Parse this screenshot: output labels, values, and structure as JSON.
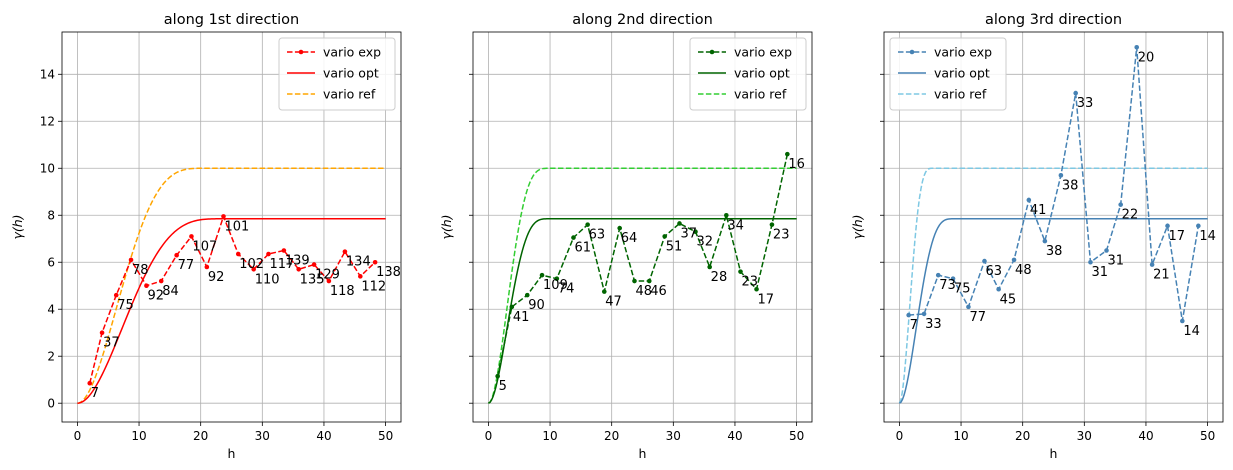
{
  "chart_data": [
    {
      "type": "line",
      "title": "along 1st direction",
      "xlabel": "h",
      "ylabel": "γ(h)",
      "xlim": [
        -2.5,
        52.5
      ],
      "ylim": [
        -0.8,
        15.8
      ],
      "xticks": [
        0,
        10,
        20,
        30,
        40,
        50
      ],
      "yticks": [
        0,
        2,
        4,
        6,
        8,
        10,
        12,
        14
      ],
      "show_yticklabels": true,
      "grid": true,
      "legend_position": "upper-right",
      "opt_model": {
        "sill": 7.85,
        "range": 24
      },
      "ref_model": {
        "sill": 10.0,
        "range": 21
      },
      "series": [
        {
          "name": "vario exp",
          "style": "dashed-markers",
          "color": "#ff0000",
          "x": [
            2.0,
            4.0,
            6.3,
            8.7,
            11.2,
            13.6,
            16.1,
            18.5,
            21.0,
            23.7,
            26.1,
            28.6,
            31.0,
            33.5,
            35.9,
            38.4,
            40.8,
            43.4,
            45.9,
            48.3
          ],
          "y": [
            0.85,
            3.0,
            4.6,
            6.1,
            5.0,
            5.2,
            6.3,
            7.1,
            5.8,
            7.95,
            6.35,
            5.7,
            6.35,
            6.5,
            5.7,
            5.9,
            5.2,
            6.45,
            5.4,
            6.0
          ],
          "labels": [
            "7",
            "37",
            "75",
            "78",
            "92",
            "84",
            "77",
            "107",
            "92",
            "101",
            "102",
            "110",
            "117",
            "139",
            "135",
            "129",
            "118",
            "134",
            "112",
            "138"
          ]
        },
        {
          "name": "vario opt",
          "style": "solid",
          "color": "#ff0000"
        },
        {
          "name": "vario ref",
          "style": "dashed",
          "color": "#ffa500"
        }
      ]
    },
    {
      "type": "line",
      "title": "along 2nd direction",
      "xlabel": "h",
      "ylabel": "γ(h)",
      "xlim": [
        -2.5,
        52.5
      ],
      "ylim": [
        -0.8,
        15.8
      ],
      "xticks": [
        0,
        10,
        20,
        30,
        40,
        50
      ],
      "yticks": [
        0,
        2,
        4,
        6,
        8,
        10,
        12,
        14
      ],
      "show_yticklabels": false,
      "grid": true,
      "legend_position": "upper-right",
      "opt_model": {
        "sill": 7.85,
        "range": 10
      },
      "ref_model": {
        "sill": 10.0,
        "range": 10
      },
      "series": [
        {
          "name": "vario exp",
          "style": "dashed-markers",
          "color": "#006400",
          "x": [
            1.5,
            3.8,
            6.3,
            8.7,
            11.1,
            13.8,
            16.1,
            18.8,
            21.3,
            23.7,
            26.1,
            28.6,
            31.0,
            33.6,
            35.9,
            38.6,
            40.9,
            43.5,
            46.0,
            48.5
          ],
          "y": [
            1.15,
            4.1,
            4.6,
            5.45,
            5.3,
            7.05,
            7.6,
            4.75,
            7.45,
            5.2,
            5.2,
            7.1,
            7.65,
            7.3,
            5.8,
            8.0,
            5.6,
            4.85,
            7.6,
            10.6
          ],
          "labels": [
            "5",
            "41",
            "90",
            "109",
            "74",
            "61",
            "63",
            "47",
            "64",
            "48",
            "46",
            "51",
            "37",
            "32",
            "28",
            "34",
            "23",
            "17",
            "23",
            "16"
          ]
        },
        {
          "name": "vario opt",
          "style": "solid",
          "color": "#006400"
        },
        {
          "name": "vario ref",
          "style": "dashed",
          "color": "#32cd32"
        }
      ]
    },
    {
      "type": "line",
      "title": "along 3rd direction",
      "xlabel": "h",
      "ylabel": "γ(h)",
      "xlim": [
        -2.5,
        52.5
      ],
      "ylim": [
        -0.8,
        15.8
      ],
      "xticks": [
        0,
        10,
        20,
        30,
        40,
        50
      ],
      "yticks": [
        0,
        2,
        4,
        6,
        8,
        10,
        12,
        14
      ],
      "show_yticklabels": false,
      "grid": true,
      "legend_position": "upper-left",
      "opt_model": {
        "sill": 7.85,
        "range": 9
      },
      "ref_model": {
        "sill": 10.0,
        "range": 5.5
      },
      "series": [
        {
          "name": "vario exp",
          "style": "dashed-markers",
          "color": "#4682b4",
          "x": [
            1.5,
            4.0,
            6.3,
            8.7,
            11.2,
            13.8,
            16.1,
            18.6,
            21.0,
            23.6,
            26.2,
            28.6,
            31.0,
            33.6,
            35.9,
            38.5,
            41.0,
            43.5,
            45.9,
            48.5
          ],
          "y": [
            3.75,
            3.8,
            5.45,
            5.3,
            4.1,
            6.05,
            4.85,
            6.1,
            8.65,
            6.9,
            9.7,
            13.2,
            6.0,
            6.5,
            8.45,
            15.15,
            5.9,
            7.55,
            3.5,
            7.55
          ],
          "labels": [
            "7",
            "33",
            "73",
            "75",
            "77",
            "63",
            "45",
            "48",
            "41",
            "38",
            "38",
            "33",
            "31",
            "31",
            "22",
            "20",
            "21",
            "17",
            "14",
            "14"
          ]
        },
        {
          "name": "vario opt",
          "style": "solid",
          "color": "#4682b4"
        },
        {
          "name": "vario ref",
          "style": "dashed",
          "color": "#7ec8e3"
        }
      ]
    }
  ]
}
